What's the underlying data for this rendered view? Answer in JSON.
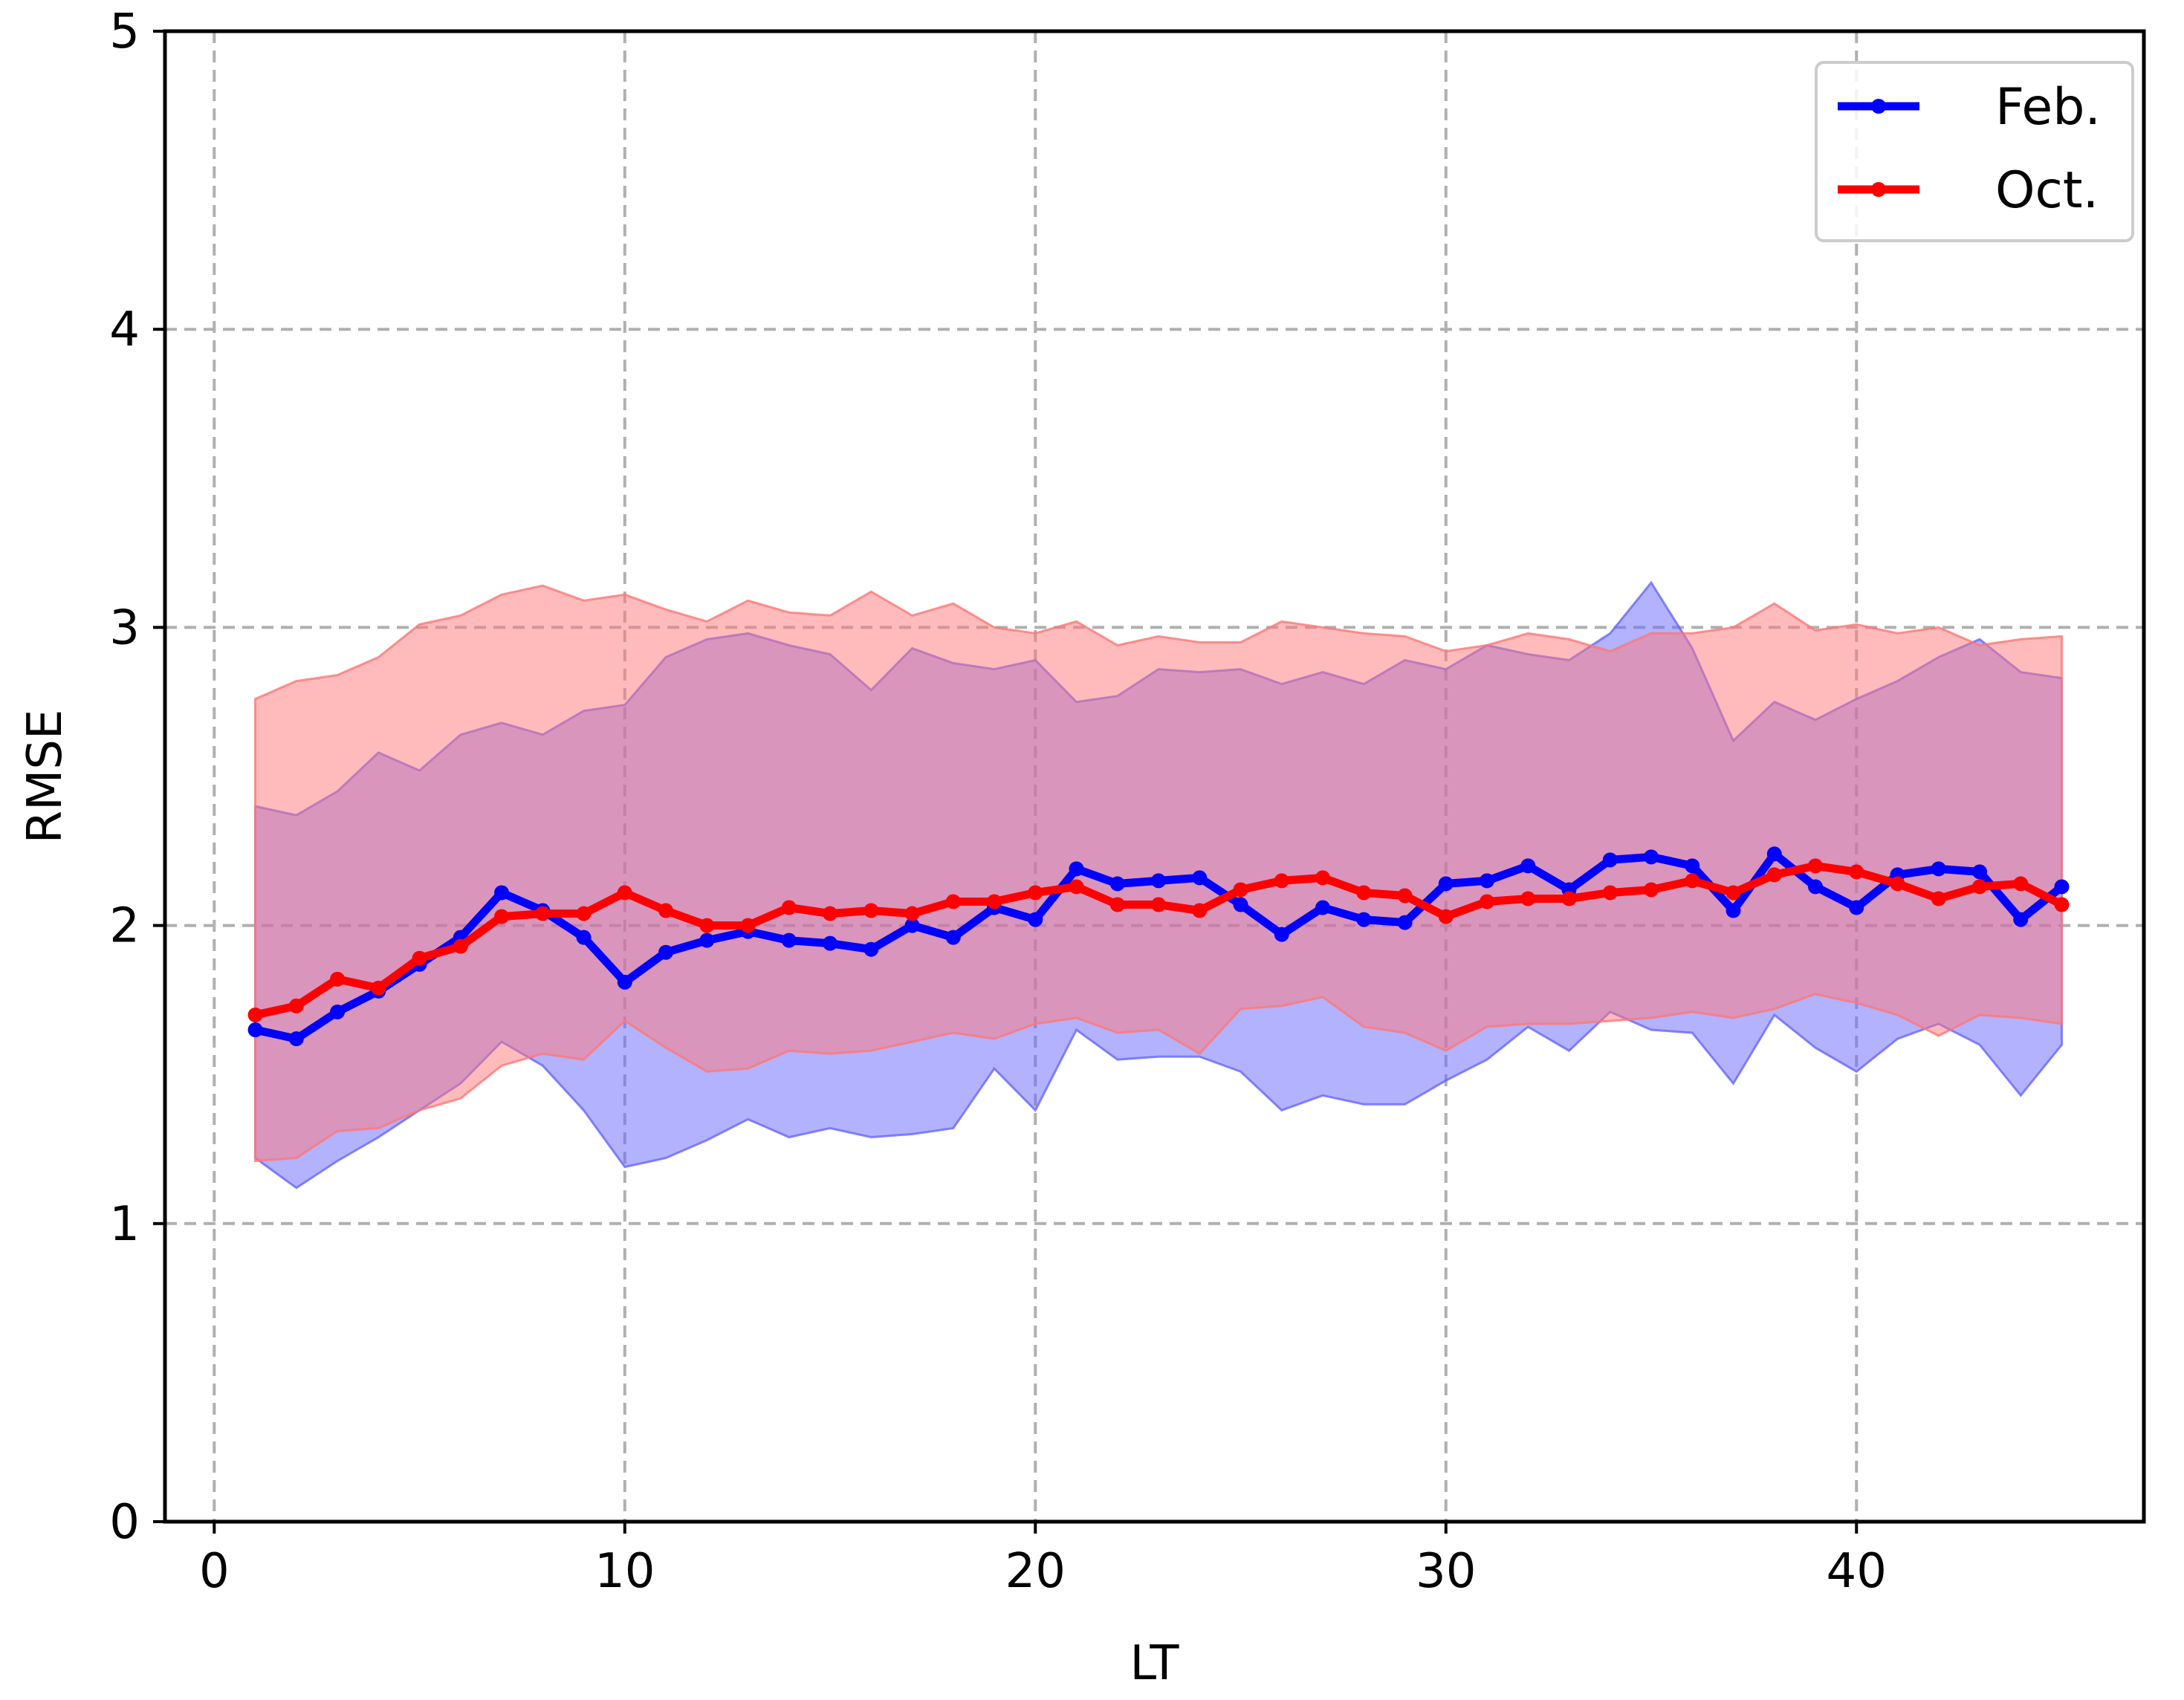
{
  "chart_data": {
    "type": "line",
    "title": "",
    "xlabel": "LT",
    "ylabel": "RMSE",
    "xlim": [
      -1.2,
      47.0
    ],
    "ylim": [
      0,
      5
    ],
    "xticks": [
      0,
      10,
      20,
      30,
      40
    ],
    "yticks": [
      0,
      1,
      2,
      3,
      4,
      5
    ],
    "grid": true,
    "grid_style": "dashed",
    "legend_position": "top-right",
    "x": [
      1,
      2,
      3,
      4,
      5,
      6,
      7,
      8,
      9,
      10,
      11,
      12,
      13,
      14,
      15,
      16,
      17,
      18,
      19,
      20,
      21,
      22,
      23,
      24,
      25,
      26,
      27,
      28,
      29,
      30,
      31,
      32,
      33,
      34,
      35,
      36,
      37,
      38,
      39,
      40,
      41,
      42,
      43,
      44,
      45
    ],
    "series": [
      {
        "name": "Feb.",
        "color": "#0000ff",
        "band_color": "#6666ff",
        "values": [
          1.65,
          1.62,
          1.71,
          1.78,
          1.87,
          1.96,
          2.11,
          2.05,
          1.96,
          1.81,
          1.91,
          1.95,
          1.98,
          1.95,
          1.94,
          1.92,
          2.0,
          1.96,
          2.06,
          2.02,
          2.19,
          2.14,
          2.15,
          2.16,
          2.07,
          1.97,
          2.06,
          2.02,
          2.01,
          2.14,
          2.15,
          2.2,
          2.12,
          2.22,
          2.23,
          2.2,
          2.05,
          2.24,
          2.13,
          2.06,
          2.17,
          2.19,
          2.18,
          2.02,
          2.13
        ],
        "upper": [
          2.4,
          2.37,
          2.45,
          2.58,
          2.52,
          2.64,
          2.68,
          2.64,
          2.72,
          2.74,
          2.9,
          2.96,
          2.98,
          2.94,
          2.91,
          2.79,
          2.93,
          2.88,
          2.86,
          2.89,
          2.75,
          2.77,
          2.86,
          2.85,
          2.86,
          2.81,
          2.85,
          2.81,
          2.89,
          2.86,
          2.94,
          2.91,
          2.89,
          2.98,
          3.15,
          2.93,
          2.62,
          2.75,
          2.69,
          2.76,
          2.82,
          2.9,
          2.96,
          2.85,
          2.83
        ],
        "lower": [
          1.22,
          1.12,
          1.21,
          1.29,
          1.38,
          1.47,
          1.61,
          1.53,
          1.38,
          1.19,
          1.22,
          1.28,
          1.35,
          1.29,
          1.32,
          1.29,
          1.3,
          1.32,
          1.52,
          1.38,
          1.65,
          1.55,
          1.56,
          1.56,
          1.51,
          1.38,
          1.43,
          1.4,
          1.4,
          1.48,
          1.55,
          1.66,
          1.58,
          1.71,
          1.65,
          1.64,
          1.47,
          1.7,
          1.59,
          1.51,
          1.62,
          1.67,
          1.6,
          1.43,
          1.6
        ]
      },
      {
        "name": "Oct.",
        "color": "#ff0000",
        "band_color": "#ff7777",
        "values": [
          1.7,
          1.73,
          1.82,
          1.79,
          1.89,
          1.93,
          2.03,
          2.04,
          2.04,
          2.11,
          2.05,
          2.0,
          2.0,
          2.06,
          2.04,
          2.05,
          2.04,
          2.08,
          2.08,
          2.11,
          2.13,
          2.07,
          2.07,
          2.05,
          2.12,
          2.15,
          2.16,
          2.11,
          2.1,
          2.03,
          2.08,
          2.09,
          2.09,
          2.11,
          2.12,
          2.15,
          2.11,
          2.17,
          2.2,
          2.18,
          2.14,
          2.09,
          2.13,
          2.14,
          2.07
        ],
        "upper": [
          2.76,
          2.82,
          2.84,
          2.9,
          3.01,
          3.04,
          3.11,
          3.14,
          3.09,
          3.11,
          3.06,
          3.02,
          3.09,
          3.05,
          3.04,
          3.12,
          3.04,
          3.08,
          3.0,
          2.98,
          3.02,
          2.94,
          2.97,
          2.95,
          2.95,
          3.02,
          3.0,
          2.98,
          2.97,
          2.92,
          2.94,
          2.98,
          2.96,
          2.92,
          2.98,
          2.98,
          3.0,
          3.08,
          2.99,
          3.01,
          2.98,
          3.0,
          2.94,
          2.96,
          2.97
        ],
        "lower": [
          1.21,
          1.22,
          1.31,
          1.32,
          1.38,
          1.42,
          1.53,
          1.57,
          1.55,
          1.68,
          1.59,
          1.51,
          1.52,
          1.58,
          1.57,
          1.58,
          1.61,
          1.64,
          1.62,
          1.67,
          1.69,
          1.64,
          1.65,
          1.57,
          1.72,
          1.73,
          1.76,
          1.66,
          1.64,
          1.58,
          1.66,
          1.67,
          1.67,
          1.68,
          1.69,
          1.71,
          1.69,
          1.72,
          1.77,
          1.74,
          1.7,
          1.63,
          1.7,
          1.69,
          1.67
        ]
      }
    ]
  }
}
